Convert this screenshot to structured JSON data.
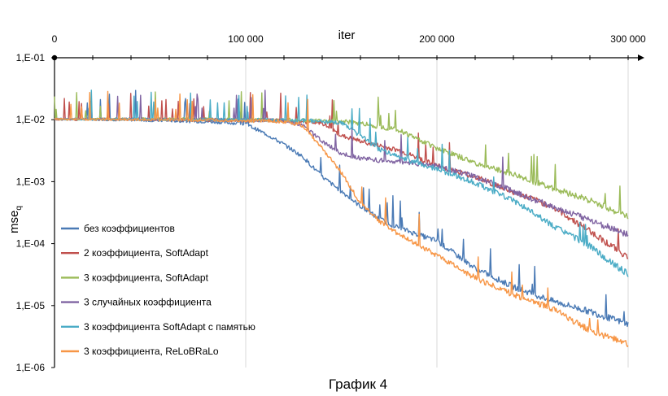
{
  "chart_data": {
    "type": "line",
    "title": "",
    "caption": "График 4",
    "xlabel": "iter",
    "ylabel_main": "mse",
    "ylabel_sub": "q",
    "x_range": [
      0,
      300000
    ],
    "x_ticks": [
      0,
      100000,
      200000,
      300000
    ],
    "x_tick_labels": [
      "0",
      "100 000",
      "200 000",
      "300 000"
    ],
    "y_scale": "log",
    "y_range": [
      1e-06,
      0.1
    ],
    "y_ticks": [
      0.1,
      0.01,
      0.001,
      0.0001,
      1e-05,
      1e-06
    ],
    "y_tick_labels": [
      "1,E-01",
      "1,E-02",
      "1,E-03",
      "1,E-04",
      "1,E-05",
      "1,E-06"
    ],
    "grid": "vertical",
    "x_axis_position": "top",
    "legend_position": "bottom-left",
    "series": [
      {
        "name": "без коэффициентов",
        "color": "#4a7ab5",
        "x": [
          0,
          10000,
          20000,
          40000,
          60000,
          80000,
          90000,
          100000,
          110000,
          120000,
          130000,
          140000,
          150000,
          160000,
          170000,
          180000,
          200000,
          220000,
          240000,
          260000,
          280000,
          300000
        ],
        "y": [
          0.0104,
          0.0102,
          0.0101,
          0.0099,
          0.0096,
          0.0093,
          0.009,
          0.0085,
          0.006,
          0.004,
          0.0025,
          0.0012,
          0.0007,
          0.0004,
          0.00025,
          0.00018,
          0.00011,
          4e-05,
          2e-05,
          1.2e-05,
          8e-06,
          5e-06
        ]
      },
      {
        "name": "2 коэффициента, SoftAdapt",
        "color": "#c0504d",
        "x": [
          0,
          40000,
          80000,
          100000,
          120000,
          140000,
          150000,
          160000,
          180000,
          200000,
          220000,
          240000,
          260000,
          280000,
          300000
        ],
        "y": [
          0.01,
          0.0102,
          0.0098,
          0.0098,
          0.0097,
          0.0088,
          0.0055,
          0.0045,
          0.0032,
          0.0018,
          0.0012,
          0.00068,
          0.0004,
          0.00016,
          6e-05
        ]
      },
      {
        "name": "3 коэффициента, SoftAdapt",
        "color": "#9bbb59",
        "x": [
          0,
          40000,
          80000,
          100000,
          120000,
          140000,
          150000,
          160000,
          180000,
          200000,
          220000,
          240000,
          260000,
          280000,
          300000
        ],
        "y": [
          0.0101,
          0.0103,
          0.0101,
          0.01,
          0.0099,
          0.0095,
          0.0093,
          0.0088,
          0.0068,
          0.0035,
          0.002,
          0.0013,
          0.0008,
          0.0005,
          0.00027
        ]
      },
      {
        "name": "3 случайных коэффициента",
        "color": "#8064a2",
        "x": [
          0,
          40000,
          80000,
          100000,
          120000,
          130000,
          140000,
          150000,
          160000,
          170000,
          180000,
          200000,
          220000,
          240000,
          260000,
          280000,
          300000
        ],
        "y": [
          0.0103,
          0.0102,
          0.01,
          0.0099,
          0.0097,
          0.008,
          0.0045,
          0.0028,
          0.0024,
          0.0022,
          0.0021,
          0.0018,
          0.0012,
          0.0007,
          0.0004,
          0.00024,
          0.00014
        ]
      },
      {
        "name": "3 коэффициента SoftAdapt  с памятью",
        "color": "#4bacc6",
        "x": [
          0,
          40000,
          80000,
          100000,
          120000,
          140000,
          150000,
          160000,
          170000,
          180000,
          200000,
          220000,
          240000,
          260000,
          280000,
          300000
        ],
        "y": [
          0.0102,
          0.0102,
          0.01,
          0.0099,
          0.0098,
          0.0095,
          0.0088,
          0.0055,
          0.0033,
          0.0025,
          0.0016,
          0.00095,
          0.0005,
          0.0002,
          9e-05,
          3.2e-05
        ]
      },
      {
        "name": "3 коэффициента, ReLoBRaLo",
        "color": "#f79646",
        "x": [
          0,
          40000,
          80000,
          100000,
          120000,
          130000,
          140000,
          150000,
          160000,
          170000,
          180000,
          200000,
          220000,
          240000,
          260000,
          280000,
          300000
        ],
        "y": [
          0.0102,
          0.0101,
          0.0098,
          0.0097,
          0.0094,
          0.008,
          0.0035,
          0.0014,
          0.00045,
          0.00023,
          0.00014,
          6.5e-05,
          2.8e-05,
          1.5e-05,
          9e-06,
          4e-06,
          2.4e-06
        ]
      }
    ]
  }
}
